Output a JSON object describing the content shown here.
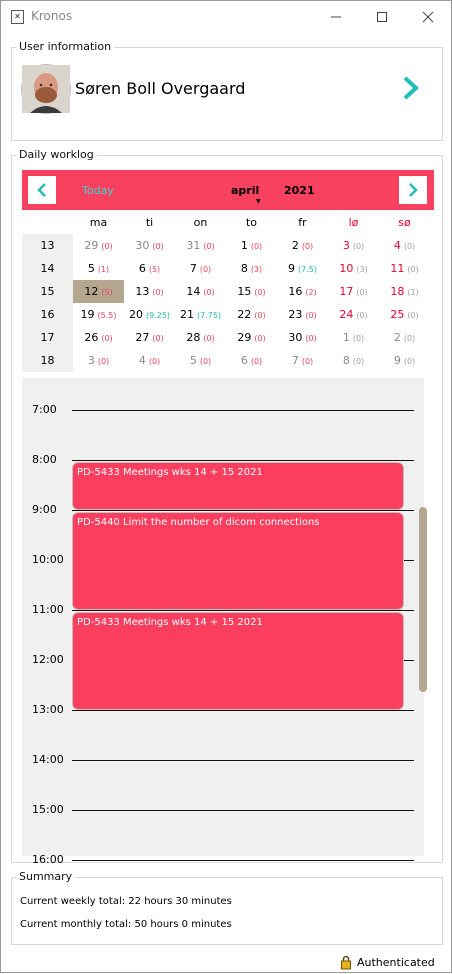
{
  "window": {
    "title": "Kronos",
    "app_icon": "app-icon",
    "minimize": "—",
    "maximize": "☐",
    "close": "✕"
  },
  "user": {
    "legend": "User information",
    "name": "Søren Boll Overgaard"
  },
  "worklog": {
    "legend": "Daily worklog",
    "today_label": "Today",
    "month": "april",
    "year": "2021",
    "weekdays": [
      {
        "label": "ma",
        "weekend": false
      },
      {
        "label": "ti",
        "weekend": false
      },
      {
        "label": "on",
        "weekend": false
      },
      {
        "label": "to",
        "weekend": false
      },
      {
        "label": "fr",
        "weekend": false
      },
      {
        "label": "lø",
        "weekend": true
      },
      {
        "label": "sø",
        "weekend": true
      }
    ],
    "weeks": [
      {
        "week": "13",
        "days": [
          {
            "day": "29",
            "hours": "0",
            "tone": "gray",
            "htone": "red"
          },
          {
            "day": "30",
            "hours": "0",
            "tone": "gray",
            "htone": "red"
          },
          {
            "day": "31",
            "hours": "0",
            "tone": "gray",
            "htone": "red"
          },
          {
            "day": "1",
            "hours": "0",
            "tone": "norm",
            "htone": "red"
          },
          {
            "day": "2",
            "hours": "0",
            "tone": "norm",
            "htone": "red"
          },
          {
            "day": "3",
            "hours": "0",
            "tone": "red",
            "htone": "gray"
          },
          {
            "day": "4",
            "hours": "0",
            "tone": "red",
            "htone": "gray"
          }
        ]
      },
      {
        "week": "14",
        "days": [
          {
            "day": "5",
            "hours": "1",
            "tone": "norm",
            "htone": "red"
          },
          {
            "day": "6",
            "hours": "5",
            "tone": "norm",
            "htone": "red"
          },
          {
            "day": "7",
            "hours": "0",
            "tone": "norm",
            "htone": "red"
          },
          {
            "day": "8",
            "hours": "3",
            "tone": "norm",
            "htone": "red"
          },
          {
            "day": "9",
            "hours": "7.5",
            "tone": "norm",
            "htone": "cyan"
          },
          {
            "day": "10",
            "hours": "3",
            "tone": "red",
            "htone": "gray"
          },
          {
            "day": "11",
            "hours": "0",
            "tone": "red",
            "htone": "gray"
          }
        ]
      },
      {
        "week": "15",
        "days": [
          {
            "day": "12",
            "hours": "5",
            "tone": "norm",
            "htone": "red",
            "selected": true
          },
          {
            "day": "13",
            "hours": "0",
            "tone": "norm",
            "htone": "red"
          },
          {
            "day": "14",
            "hours": "0",
            "tone": "norm",
            "htone": "red"
          },
          {
            "day": "15",
            "hours": "0",
            "tone": "norm",
            "htone": "red"
          },
          {
            "day": "16",
            "hours": "2",
            "tone": "norm",
            "htone": "red"
          },
          {
            "day": "17",
            "hours": "0",
            "tone": "red",
            "htone": "gray"
          },
          {
            "day": "18",
            "hours": "1",
            "tone": "red",
            "htone": "gray"
          }
        ]
      },
      {
        "week": "16",
        "days": [
          {
            "day": "19",
            "hours": "5.5",
            "tone": "norm",
            "htone": "red"
          },
          {
            "day": "20",
            "hours": "9.25",
            "tone": "norm",
            "htone": "cyan"
          },
          {
            "day": "21",
            "hours": "7.75",
            "tone": "norm",
            "htone": "cyan"
          },
          {
            "day": "22",
            "hours": "0",
            "tone": "norm",
            "htone": "red"
          },
          {
            "day": "23",
            "hours": "0",
            "tone": "norm",
            "htone": "red"
          },
          {
            "day": "24",
            "hours": "0",
            "tone": "red",
            "htone": "gray"
          },
          {
            "day": "25",
            "hours": "0",
            "tone": "red",
            "htone": "gray"
          }
        ]
      },
      {
        "week": "17",
        "days": [
          {
            "day": "26",
            "hours": "0",
            "tone": "norm",
            "htone": "red"
          },
          {
            "day": "27",
            "hours": "0",
            "tone": "norm",
            "htone": "red"
          },
          {
            "day": "28",
            "hours": "0",
            "tone": "norm",
            "htone": "red"
          },
          {
            "day": "29",
            "hours": "0",
            "tone": "norm",
            "htone": "red"
          },
          {
            "day": "30",
            "hours": "0",
            "tone": "norm",
            "htone": "red"
          },
          {
            "day": "1",
            "hours": "0",
            "tone": "gray",
            "htone": "gray"
          },
          {
            "day": "2",
            "hours": "0",
            "tone": "gray",
            "htone": "gray"
          }
        ]
      },
      {
        "week": "18",
        "days": [
          {
            "day": "3",
            "hours": "0",
            "tone": "gray",
            "htone": "red"
          },
          {
            "day": "4",
            "hours": "0",
            "tone": "gray",
            "htone": "red"
          },
          {
            "day": "5",
            "hours": "0",
            "tone": "gray",
            "htone": "red"
          },
          {
            "day": "6",
            "hours": "0",
            "tone": "gray",
            "htone": "red"
          },
          {
            "day": "7",
            "hours": "0",
            "tone": "gray",
            "htone": "red"
          },
          {
            "day": "8",
            "hours": "0",
            "tone": "gray",
            "htone": "gray"
          },
          {
            "day": "9",
            "hours": "0",
            "tone": "gray",
            "htone": "gray"
          }
        ]
      }
    ],
    "hours": [
      "7:00",
      "8:00",
      "9:00",
      "10:00",
      "11:00",
      "12:00",
      "13:00",
      "14:00",
      "15:00",
      "16:00"
    ],
    "events": [
      {
        "label": "PD-5433 Meetings wks 14 + 15 2021",
        "start": "8:00",
        "end": "9:00"
      },
      {
        "label": "PD-5440 Limit the number of dicom connections",
        "start": "9:00",
        "end": "11:00"
      },
      {
        "label": "PD-5433 Meetings wks 14 + 15 2021",
        "start": "11:00",
        "end": "13:00"
      }
    ]
  },
  "summary": {
    "legend": "Summary",
    "weekly": "Current weekly total: 22 hours 30 minutes",
    "monthly": "Current monthly total: 50 hours 0 minutes"
  },
  "status": {
    "label": "Authenticated",
    "icon": "lock-icon"
  },
  "colors": {
    "accent": "#f7415f",
    "event": "#fb3d5e",
    "teal": "#21bdb7",
    "selected": "#b5a68f",
    "weekend": "#e6002e"
  }
}
